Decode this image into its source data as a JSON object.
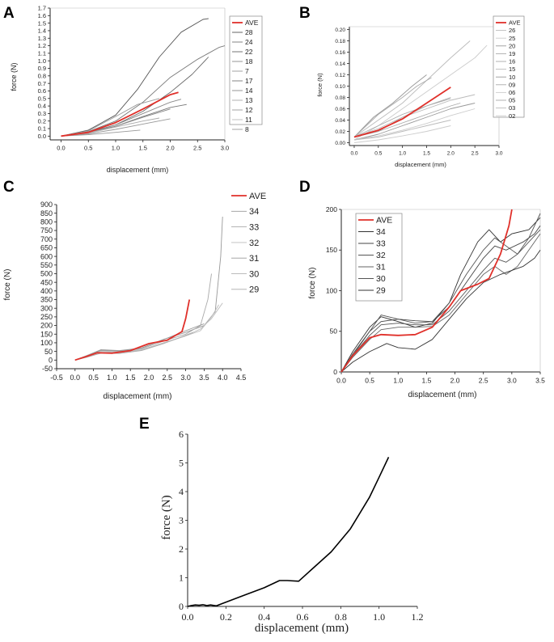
{
  "chart_data": [
    {
      "panel": "A",
      "type": "line",
      "xlabel": "displacement (mm)",
      "ylabel": "force (N)",
      "xlim": [
        -0.2,
        3.0
      ],
      "ylim": [
        -0.05,
        1.7
      ],
      "xticks": [
        "0.0",
        "0.5",
        "1.0",
        "1.5",
        "2.0",
        "2.5",
        "3.0"
      ],
      "yticks": [
        "0.0",
        "0.1",
        "0.2",
        "0.3",
        "0.4",
        "0.5",
        "0.6",
        "0.7",
        "0.8",
        "0.9",
        "1.0",
        "1.1",
        "1.2",
        "1.3",
        "1.4",
        "1.5",
        "1.6",
        "1.7"
      ],
      "legend": [
        "AVE",
        "28",
        "24",
        "22",
        "18",
        "7",
        "17",
        "14",
        "13",
        "12",
        "11",
        "8"
      ],
      "series": [
        {
          "name": "AVE",
          "x": [
            0,
            0.5,
            1.0,
            1.5,
            2.0,
            2.15
          ],
          "y": [
            0,
            0.05,
            0.18,
            0.36,
            0.55,
            0.58
          ]
        },
        {
          "name": "28",
          "x": [
            0,
            0.5,
            1.0,
            1.4,
            1.8,
            2.2,
            2.6,
            2.7
          ],
          "y": [
            0,
            0.08,
            0.28,
            0.62,
            1.05,
            1.38,
            1.55,
            1.56
          ]
        },
        {
          "name": "24",
          "x": [
            0,
            0.5,
            1.0,
            1.5,
            2.0,
            2.5,
            2.9,
            3.0
          ],
          "y": [
            0,
            0.06,
            0.2,
            0.45,
            0.78,
            1.02,
            1.18,
            1.2
          ]
        },
        {
          "name": "22",
          "x": [
            0,
            0.5,
            1.0,
            1.5,
            2.0,
            2.4,
            2.7
          ],
          "y": [
            0,
            0.05,
            0.15,
            0.33,
            0.58,
            0.82,
            1.05
          ]
        },
        {
          "name": "18",
          "x": [
            0,
            0.5,
            1.0,
            1.5,
            2.0,
            2.2
          ],
          "y": [
            0,
            0.04,
            0.15,
            0.3,
            0.45,
            0.49
          ]
        },
        {
          "name": "7",
          "x": [
            0,
            0.5,
            1.0,
            1.4,
            1.8
          ],
          "y": [
            0,
            0.07,
            0.26,
            0.42,
            0.5
          ]
        },
        {
          "name": "17",
          "x": [
            0,
            0.5,
            1.0,
            1.5,
            2.0,
            2.3
          ],
          "y": [
            0,
            0.04,
            0.13,
            0.26,
            0.38,
            0.42
          ]
        },
        {
          "name": "14",
          "x": [
            0,
            0.5,
            1.0,
            1.5,
            2.0
          ],
          "y": [
            0,
            0.05,
            0.13,
            0.25,
            0.36
          ]
        },
        {
          "name": "13",
          "x": [
            0,
            0.5,
            1.0,
            1.5,
            1.8
          ],
          "y": [
            0,
            0.04,
            0.12,
            0.2,
            0.24
          ]
        },
        {
          "name": "12",
          "x": [
            0,
            0.5,
            1.0,
            1.5,
            2.0
          ],
          "y": [
            0,
            0.03,
            0.09,
            0.16,
            0.23
          ]
        },
        {
          "name": "11",
          "x": [
            0,
            0.5,
            1.0,
            1.3
          ],
          "y": [
            0,
            0.04,
            0.12,
            0.17
          ]
        },
        {
          "name": "8",
          "x": [
            0,
            0.5,
            1.0,
            1.45
          ],
          "y": [
            0,
            0.02,
            0.05,
            0.08
          ]
        }
      ]
    },
    {
      "panel": "B",
      "type": "line",
      "xlabel": "displacement (mm)",
      "ylabel": "force (N)",
      "xlim": [
        -0.1,
        3.0
      ],
      "ylim": [
        -0.005,
        0.205
      ],
      "xticks": [
        "0.0",
        "0.5",
        "1.0",
        "1.5",
        "2.0",
        "2.5",
        "3.0"
      ],
      "yticks": [
        "0.00",
        "0.02",
        "0.04",
        "0.06",
        "0.08",
        "0.10",
        "0.12",
        "0.14",
        "0.16",
        "0.18",
        "0.20"
      ],
      "legend": [
        "AVE",
        "26",
        "25",
        "20",
        "19",
        "16",
        "15",
        "10",
        "09",
        "06",
        "05",
        "03",
        "02"
      ],
      "series": [
        {
          "name": "AVE",
          "x": [
            0,
            0.5,
            1.0,
            1.5,
            2.0
          ],
          "y": [
            0.01,
            0.022,
            0.042,
            0.07,
            0.098
          ]
        },
        {
          "name": "26",
          "x": [
            0,
            0.5,
            1.0,
            1.5,
            2.0,
            2.4
          ],
          "y": [
            0.01,
            0.04,
            0.07,
            0.11,
            0.15,
            0.18
          ]
        },
        {
          "name": "25",
          "x": [
            0,
            0.5,
            1.0,
            1.5,
            2.0,
            2.5,
            2.75
          ],
          "y": [
            0.005,
            0.03,
            0.06,
            0.09,
            0.12,
            0.15,
            0.172
          ]
        },
        {
          "name": "20",
          "x": [
            0,
            0.4,
            0.8,
            1.2,
            1.5
          ],
          "y": [
            0.01,
            0.045,
            0.07,
            0.1,
            0.12
          ]
        },
        {
          "name": "19",
          "x": [
            0,
            0.5,
            1.0,
            1.3,
            1.6
          ],
          "y": [
            0.01,
            0.05,
            0.08,
            0.1,
            0.115
          ]
        },
        {
          "name": "16",
          "x": [
            0,
            0.5,
            1.0,
            1.5,
            2.0
          ],
          "y": [
            0.01,
            0.02,
            0.045,
            0.065,
            0.08
          ]
        },
        {
          "name": "15",
          "x": [
            0,
            0.5,
            1.0,
            1.5,
            2.0,
            2.5
          ],
          "y": [
            0.01,
            0.025,
            0.045,
            0.06,
            0.075,
            0.085
          ]
        },
        {
          "name": "10",
          "x": [
            0,
            0.5,
            1.0,
            1.5,
            2.0,
            2.5
          ],
          "y": [
            0.005,
            0.015,
            0.03,
            0.045,
            0.06,
            0.07
          ]
        },
        {
          "name": "09",
          "x": [
            0,
            0.5,
            1.0,
            1.5,
            2.0
          ],
          "y": [
            0.01,
            0.03,
            0.05,
            0.065,
            0.078
          ]
        },
        {
          "name": "06",
          "x": [
            0,
            0.5,
            1.0,
            1.5,
            2.0,
            2.5
          ],
          "y": [
            0.005,
            0.012,
            0.022,
            0.034,
            0.048,
            0.06
          ]
        },
        {
          "name": "05",
          "x": [
            0,
            0.5,
            1.0,
            1.5,
            2.0,
            2.2
          ],
          "y": [
            0.01,
            0.02,
            0.035,
            0.05,
            0.065,
            0.07
          ]
        },
        {
          "name": "03",
          "x": [
            0,
            0.5,
            1.0,
            1.5,
            2.0
          ],
          "y": [
            0.005,
            0.01,
            0.02,
            0.03,
            0.04
          ]
        },
        {
          "name": "02",
          "x": [
            0,
            0.5,
            1.0,
            1.5,
            2.0
          ],
          "y": [
            0,
            0.005,
            0.012,
            0.02,
            0.03
          ]
        }
      ]
    },
    {
      "panel": "C",
      "type": "line",
      "xlabel": "displacement (mm)",
      "ylabel": "force (N)",
      "xlim": [
        -0.5,
        4.5
      ],
      "ylim": [
        -50,
        900
      ],
      "xticks": [
        "-0.5",
        "0.0",
        "0.5",
        "1.0",
        "1.5",
        "2.0",
        "2.5",
        "3.0",
        "3.5",
        "4.0",
        "4.5"
      ],
      "yticks": [
        "-50",
        "0",
        "50",
        "100",
        "150",
        "200",
        "250",
        "300",
        "350",
        "400",
        "450",
        "500",
        "550",
        "600",
        "650",
        "700",
        "750",
        "800",
        "850",
        "900"
      ],
      "legend": [
        "AVE",
        "34",
        "33",
        "32",
        "31",
        "30",
        "29"
      ],
      "series": [
        {
          "name": "AVE",
          "x": [
            0,
            0.3,
            0.6,
            1.0,
            1.5,
            2.0,
            2.5,
            2.9,
            3.0,
            3.1
          ],
          "y": [
            0,
            20,
            42,
            40,
            55,
            95,
            115,
            165,
            240,
            350
          ]
        },
        {
          "name": "34",
          "x": [
            0,
            0.3,
            0.7,
            1.2,
            1.8,
            2.4,
            3.0,
            3.5,
            3.8,
            3.95,
            4.0
          ],
          "y": [
            0,
            25,
            60,
            55,
            70,
            120,
            160,
            200,
            280,
            600,
            830
          ]
        },
        {
          "name": "33",
          "x": [
            0,
            0.3,
            0.7,
            1.2,
            1.8,
            2.4,
            3.0,
            3.4,
            3.6,
            3.7
          ],
          "y": [
            0,
            20,
            55,
            50,
            65,
            110,
            150,
            200,
            350,
            500
          ]
        },
        {
          "name": "32",
          "x": [
            0,
            0.3,
            0.7,
            1.2,
            1.8,
            2.4,
            3.0,
            3.4,
            3.7,
            4.0
          ],
          "y": [
            0,
            20,
            50,
            45,
            60,
            100,
            140,
            180,
            240,
            330
          ]
        },
        {
          "name": "31",
          "x": [
            0,
            0.3,
            0.7,
            1.2,
            1.8,
            2.4,
            3.0,
            3.5
          ],
          "y": [
            0,
            22,
            58,
            52,
            70,
            118,
            170,
            210
          ]
        },
        {
          "name": "30",
          "x": [
            0,
            0.3,
            0.7,
            1.2,
            1.8,
            2.4,
            3.0,
            3.4,
            3.7,
            3.9
          ],
          "y": [
            0,
            18,
            45,
            42,
            58,
            98,
            140,
            170,
            250,
            320
          ]
        },
        {
          "name": "29",
          "x": [
            0,
            0.3,
            0.7,
            1.2,
            1.8,
            2.4,
            2.9,
            3.2
          ],
          "y": [
            0,
            15,
            40,
            38,
            55,
            95,
            135,
            160
          ]
        }
      ]
    },
    {
      "panel": "D",
      "type": "line",
      "xlabel": "displacement (mm)",
      "ylabel": "force (N)",
      "xlim": [
        0,
        3.5
      ],
      "ylim": [
        0,
        200
      ],
      "xticks": [
        "0.0",
        "0.5",
        "1.0",
        "1.5",
        "2.0",
        "2.5",
        "3.0",
        "3.5"
      ],
      "yticks": [
        "0",
        "50",
        "100",
        "150",
        "200"
      ],
      "legend": [
        "AVE",
        "34",
        "33",
        "32",
        "31",
        "30",
        "29"
      ],
      "series": [
        {
          "name": "AVE",
          "x": [
            0,
            0.2,
            0.5,
            0.7,
            1.0,
            1.3,
            1.6,
            1.9,
            2.1,
            2.4,
            2.6,
            2.8,
            2.95,
            3.0
          ],
          "y": [
            0,
            20,
            42,
            46,
            45,
            46,
            55,
            80,
            100,
            108,
            115,
            145,
            180,
            200
          ]
        },
        {
          "name": "34",
          "x": [
            0,
            0.2,
            0.5,
            0.7,
            1.0,
            1.3,
            1.6,
            1.9,
            2.1,
            2.4,
            2.6,
            2.8,
            3.0,
            3.3,
            3.5
          ],
          "y": [
            0,
            25,
            55,
            68,
            62,
            55,
            60,
            85,
            120,
            160,
            175,
            160,
            170,
            175,
            190
          ]
        },
        {
          "name": "33",
          "x": [
            0,
            0.2,
            0.5,
            0.7,
            1.0,
            1.3,
            1.6,
            1.9,
            2.2,
            2.5,
            2.7,
            2.9,
            3.2,
            3.4,
            3.5
          ],
          "y": [
            0,
            22,
            50,
            62,
            65,
            63,
            62,
            80,
            110,
            140,
            155,
            150,
            160,
            170,
            180
          ]
        },
        {
          "name": "32",
          "x": [
            0,
            0.2,
            0.5,
            0.7,
            1.0,
            1.3,
            1.6,
            1.9,
            2.2,
            2.5,
            2.7,
            2.9,
            3.1,
            3.3,
            3.5
          ],
          "y": [
            0,
            20,
            45,
            58,
            60,
            58,
            58,
            75,
            100,
            125,
            140,
            135,
            145,
            160,
            175
          ]
        },
        {
          "name": "31",
          "x": [
            0,
            0.2,
            0.5,
            0.7,
            1.0,
            1.3,
            1.6,
            1.9,
            2.2,
            2.5,
            2.7,
            2.9,
            3.1,
            3.3,
            3.5
          ],
          "y": [
            0,
            18,
            40,
            52,
            55,
            55,
            56,
            70,
            95,
            120,
            130,
            120,
            130,
            150,
            170
          ]
        },
        {
          "name": "30",
          "x": [
            0,
            0.2,
            0.5,
            0.7,
            1.0,
            1.3,
            1.6,
            1.9,
            2.2,
            2.5,
            2.7,
            2.9,
            3.1,
            3.3,
            3.5
          ],
          "y": [
            0,
            20,
            50,
            70,
            65,
            60,
            62,
            85,
            120,
            150,
            165,
            155,
            145,
            165,
            195
          ]
        },
        {
          "name": "29",
          "x": [
            0,
            0.2,
            0.5,
            0.8,
            1.0,
            1.3,
            1.6,
            1.9,
            2.2,
            2.5,
            2.8,
            3.0,
            3.2,
            3.4,
            3.5
          ],
          "y": [
            0,
            12,
            25,
            35,
            30,
            28,
            40,
            65,
            90,
            110,
            120,
            125,
            130,
            140,
            150
          ]
        }
      ]
    },
    {
      "panel": "E",
      "type": "line",
      "xlabel": "displacement (mm)",
      "ylabel": "force (N)",
      "xlim": [
        0,
        1.2
      ],
      "ylim": [
        0,
        6
      ],
      "xticks": [
        "0.0",
        "0.2",
        "0.4",
        "0.6",
        "0.8",
        "1.0",
        "1.2"
      ],
      "yticks": [
        "0",
        "1",
        "2",
        "3",
        "4",
        "5",
        "6"
      ],
      "legend": [],
      "series": [
        {
          "name": "E",
          "x": [
            0,
            0.02,
            0.04,
            0.06,
            0.08,
            0.1,
            0.12,
            0.15,
            0.2,
            0.3,
            0.4,
            0.48,
            0.52,
            0.58,
            0.65,
            0.75,
            0.85,
            0.95,
            1.0,
            1.05
          ],
          "y": [
            0,
            0.03,
            0.05,
            0.04,
            0.06,
            0.03,
            0.05,
            0.02,
            0.15,
            0.4,
            0.65,
            0.9,
            0.9,
            0.88,
            1.3,
            1.9,
            2.7,
            3.8,
            4.5,
            5.2
          ]
        }
      ]
    }
  ]
}
